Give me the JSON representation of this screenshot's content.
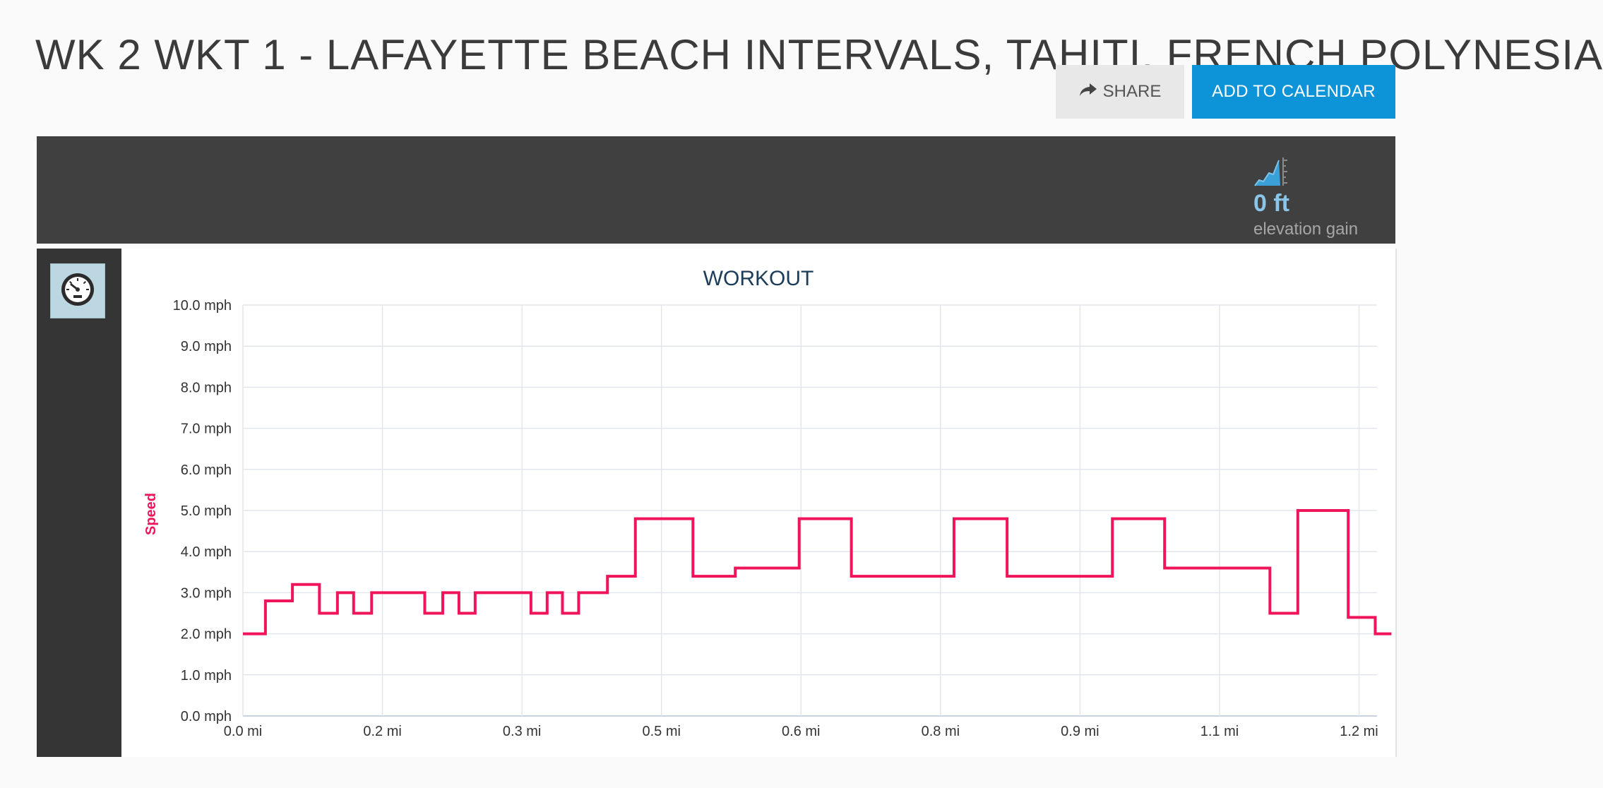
{
  "page": {
    "title": "WK 2 WKT 1 - LAFAYETTE BEACH INTERVALS, TAHITI, FRENCH POLYNESIA"
  },
  "actions": {
    "share_label": "SHARE",
    "share_icon": "share-arrow-icon",
    "add_to_calendar_label": "ADD TO CALENDAR",
    "accent_color": "#0d93d8"
  },
  "stats": {
    "elevation_icon": "elevation-chart-icon",
    "elevation_value": "0 ft",
    "elevation_label": "elevation gain"
  },
  "metric_selector": {
    "icon": "speedometer-icon"
  },
  "chart_data": {
    "type": "line",
    "title": "WORKOUT",
    "xlabel": "",
    "ylabel": "Speed",
    "series_color": "#f0145a",
    "grid": true,
    "xlim": [
      0,
      1.26
    ],
    "ylim": [
      0,
      10
    ],
    "x_ticks": [
      {
        "value": 0.0,
        "label": "0.0 mi"
      },
      {
        "value": 0.155,
        "label": "0.2 mi"
      },
      {
        "value": 0.31,
        "label": "0.3 mi"
      },
      {
        "value": 0.465,
        "label": "0.5 mi"
      },
      {
        "value": 0.62,
        "label": "0.6 mi"
      },
      {
        "value": 0.775,
        "label": "0.8 mi"
      },
      {
        "value": 0.93,
        "label": "0.9 mi"
      },
      {
        "value": 1.085,
        "label": "1.1 mi"
      },
      {
        "value": 1.24,
        "label": "1.2 mi"
      }
    ],
    "y_ticks": [
      {
        "value": 0,
        "label": "0.0 mph"
      },
      {
        "value": 1,
        "label": "1.0 mph"
      },
      {
        "value": 2,
        "label": "2.0 mph"
      },
      {
        "value": 3,
        "label": "3.0 mph"
      },
      {
        "value": 4,
        "label": "4.0 mph"
      },
      {
        "value": 5,
        "label": "5.0 mph"
      },
      {
        "value": 6,
        "label": "6.0 mph"
      },
      {
        "value": 7,
        "label": "7.0 mph"
      },
      {
        "value": 8,
        "label": "8.0 mph"
      },
      {
        "value": 9,
        "label": "9.0 mph"
      },
      {
        "value": 10,
        "label": "10.0 mph"
      }
    ],
    "series": [
      {
        "step_x": [
          0.0,
          0.025,
          0.055,
          0.085,
          0.105,
          0.123,
          0.143,
          0.202,
          0.222,
          0.24,
          0.258,
          0.32,
          0.338,
          0.355,
          0.373,
          0.405,
          0.436,
          0.5,
          0.547,
          0.618,
          0.676,
          0.79,
          0.849,
          0.966,
          1.024,
          1.141,
          1.172,
          1.228,
          1.258,
          1.276
        ],
        "step_y": [
          2.0,
          2.8,
          3.2,
          2.5,
          3.0,
          2.5,
          3.0,
          2.5,
          3.0,
          2.5,
          3.0,
          2.5,
          3.0,
          2.5,
          3.0,
          3.4,
          4.8,
          3.4,
          3.6,
          4.8,
          3.4,
          4.8,
          3.4,
          4.8,
          3.6,
          2.5,
          5.0,
          2.4,
          2.0,
          2.0
        ]
      }
    ]
  }
}
